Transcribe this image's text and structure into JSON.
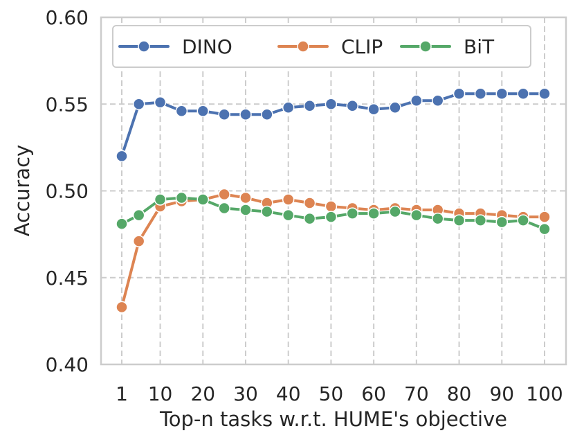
{
  "chart_data": {
    "type": "line",
    "title": "",
    "xlabel": "Top-n tasks w.r.t. HUME's objective",
    "ylabel": "Accuracy",
    "x": [
      1,
      5,
      10,
      15,
      20,
      25,
      30,
      35,
      40,
      45,
      50,
      55,
      60,
      65,
      70,
      75,
      80,
      85,
      90,
      95,
      100
    ],
    "x_ticks": [
      1,
      10,
      20,
      30,
      40,
      50,
      60,
      70,
      80,
      90,
      100
    ],
    "x_tick_labels": [
      "1",
      "10",
      "20",
      "30",
      "40",
      "50",
      "60",
      "70",
      "80",
      "90",
      "100"
    ],
    "y_ticks": [
      0.4,
      0.45,
      0.5,
      0.55,
      0.6
    ],
    "y_tick_labels": [
      "0.40",
      "0.45",
      "0.50",
      "0.55",
      "0.60"
    ],
    "ylim": [
      0.4,
      0.6
    ],
    "grid": true,
    "legend_position": "top",
    "series": [
      {
        "name": "DINO",
        "color": "#4C72B0",
        "values": [
          0.52,
          0.55,
          0.551,
          0.546,
          0.546,
          0.544,
          0.544,
          0.544,
          0.548,
          0.549,
          0.55,
          0.549,
          0.547,
          0.548,
          0.552,
          0.552,
          0.556,
          0.556,
          0.556,
          0.556,
          0.556
        ]
      },
      {
        "name": "CLIP",
        "color": "#DD8452",
        "values": [
          0.433,
          0.471,
          0.491,
          0.494,
          0.495,
          0.498,
          0.496,
          0.493,
          0.495,
          0.493,
          0.491,
          0.49,
          0.489,
          0.49,
          0.489,
          0.489,
          0.487,
          0.487,
          0.486,
          0.485,
          0.485
        ]
      },
      {
        "name": "BiT",
        "color": "#55A868",
        "values": [
          0.481,
          0.486,
          0.495,
          0.496,
          0.495,
          0.49,
          0.489,
          0.488,
          0.486,
          0.484,
          0.485,
          0.487,
          0.487,
          0.488,
          0.486,
          0.484,
          0.483,
          0.483,
          0.482,
          0.483,
          0.478
        ]
      }
    ]
  }
}
